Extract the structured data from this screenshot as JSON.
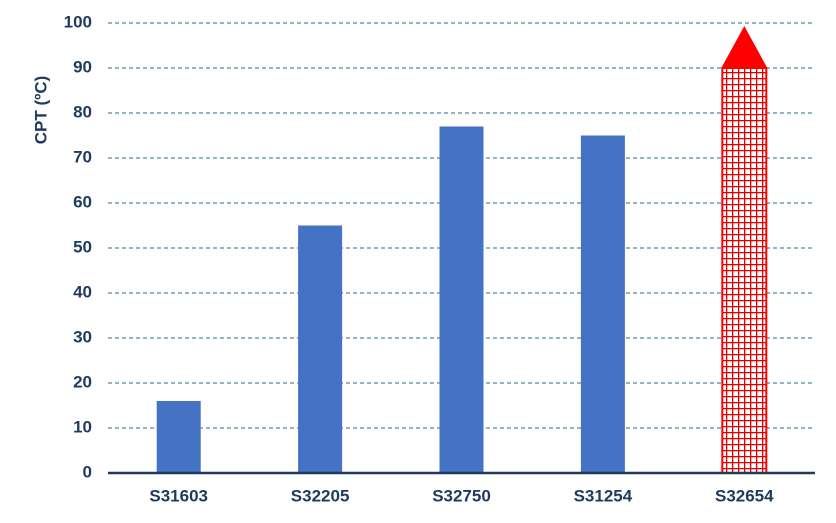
{
  "chart_data": {
    "type": "bar",
    "y_label": "CPT (ºC)",
    "categories": [
      "S31603",
      "S32205",
      "S32750",
      "S31254",
      "S32654"
    ],
    "values": [
      16,
      55,
      77,
      75,
      90
    ],
    "color": "#4472c4",
    "highlight_index": 4,
    "highlight_color": "#ff0000",
    "ylim": [
      0,
      100
    ],
    "yticks": [
      0,
      10,
      20,
      30,
      40,
      50,
      60,
      70,
      80,
      90,
      100
    ],
    "grid": true
  }
}
